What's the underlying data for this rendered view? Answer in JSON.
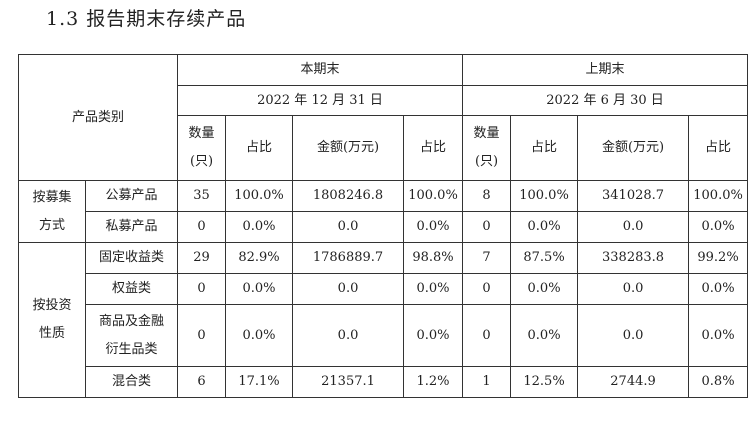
{
  "title": "1.3 报告期末存续产品",
  "table": {
    "corner": "产品类别",
    "current": {
      "label": "本期末",
      "date": "2022 年 12 月 31 日"
    },
    "previous": {
      "label": "上期末",
      "date": "2022 年 6 月 30 日"
    },
    "columns": {
      "count_line1": "数量",
      "count_line2": "(只)",
      "share": "占比",
      "amount": "金额(万元)"
    },
    "groups": [
      {
        "label_line1": "按募集",
        "label_line2": "方式",
        "rows": [
          {
            "category": "公募产品",
            "cur_count": "35",
            "cur_share": "100.0%",
            "cur_amount": "1808246.8",
            "cur_amount_share": "100.0%",
            "prev_count": "8",
            "prev_share": "100.0%",
            "prev_amount": "341028.7",
            "prev_amount_share": "100.0%"
          },
          {
            "category": "私募产品",
            "cur_count": "0",
            "cur_share": "0.0%",
            "cur_amount": "0.0",
            "cur_amount_share": "0.0%",
            "prev_count": "0",
            "prev_share": "0.0%",
            "prev_amount": "0.0",
            "prev_amount_share": "0.0%"
          }
        ]
      },
      {
        "label_line1": "按投资",
        "label_line2": "性质",
        "rows": [
          {
            "category": "固定收益类",
            "cur_count": "29",
            "cur_share": "82.9%",
            "cur_amount": "1786889.7",
            "cur_amount_share": "98.8%",
            "prev_count": "7",
            "prev_share": "87.5%",
            "prev_amount": "338283.8",
            "prev_amount_share": "99.2%"
          },
          {
            "category": "权益类",
            "cur_count": "0",
            "cur_share": "0.0%",
            "cur_amount": "0.0",
            "cur_amount_share": "0.0%",
            "prev_count": "0",
            "prev_share": "0.0%",
            "prev_amount": "0.0",
            "prev_amount_share": "0.0%"
          },
          {
            "category_line1": "商品及金融",
            "category_line2": "衍生品类",
            "cur_count": "0",
            "cur_share": "0.0%",
            "cur_amount": "0.0",
            "cur_amount_share": "0.0%",
            "prev_count": "0",
            "prev_share": "0.0%",
            "prev_amount": "0.0",
            "prev_amount_share": "0.0%"
          },
          {
            "category": "混合类",
            "cur_count": "6",
            "cur_share": "17.1%",
            "cur_amount": "21357.1",
            "cur_amount_share": "1.2%",
            "prev_count": "1",
            "prev_share": "12.5%",
            "prev_amount": "2744.9",
            "prev_amount_share": "0.8%"
          }
        ]
      }
    ]
  }
}
